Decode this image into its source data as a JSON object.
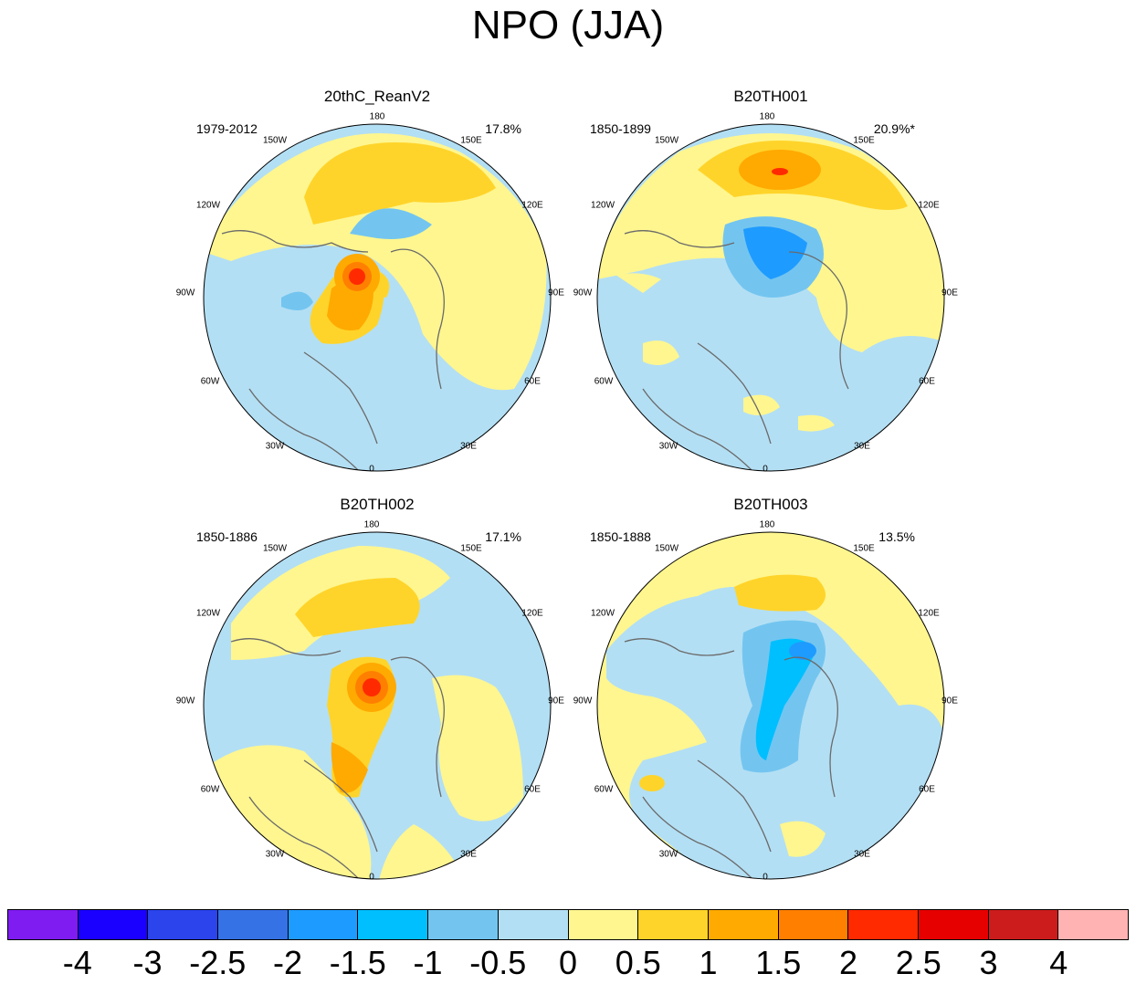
{
  "title": "NPO (JJA)",
  "colors": {
    "ocean_neg": "#b3dff4",
    "pos_light": "#fff68f",
    "pos_mid": "#ffd42a",
    "pos_strong": "#ffaa00",
    "pos_orange": "#ff7f00",
    "pos_red": "#ff2a00",
    "neg_mid": "#73c5f0",
    "neg_strong": "#00bfff",
    "neg_deep": "#1e9bff",
    "coast": "#6a6a6a"
  },
  "longitude_labels": [
    "180",
    "150E",
    "120E",
    "90E",
    "60E",
    "30E",
    "0",
    "30W",
    "60W",
    "90W",
    "120W",
    "150W"
  ],
  "panels": [
    {
      "title": "20thC_ReanV2",
      "period": "1979-2012",
      "variance": "17.8%"
    },
    {
      "title": "B20TH001",
      "period": "1850-1899",
      "variance": "20.9%*"
    },
    {
      "title": "B20TH002",
      "period": "1850-1886",
      "variance": "17.1%"
    },
    {
      "title": "B20TH003",
      "period": "1850-1888",
      "variance": "13.5%"
    }
  ],
  "colorbar": {
    "labels": [
      "-4",
      "-3",
      "-2.5",
      "-2",
      "-1.5",
      "-1",
      "-0.5",
      "0",
      "0.5",
      "1",
      "1.5",
      "2",
      "2.5",
      "3",
      "4"
    ],
    "colors": [
      "#7f1cf2",
      "#1a00ff",
      "#2b44ec",
      "#3572e6",
      "#1e9bff",
      "#00bfff",
      "#73c5f0",
      "#b3dff4",
      "#fff68f",
      "#ffd42a",
      "#ffaa00",
      "#ff7f00",
      "#ff2a00",
      "#e60000",
      "#cc1c1c",
      "#ffb3b3"
    ]
  }
}
